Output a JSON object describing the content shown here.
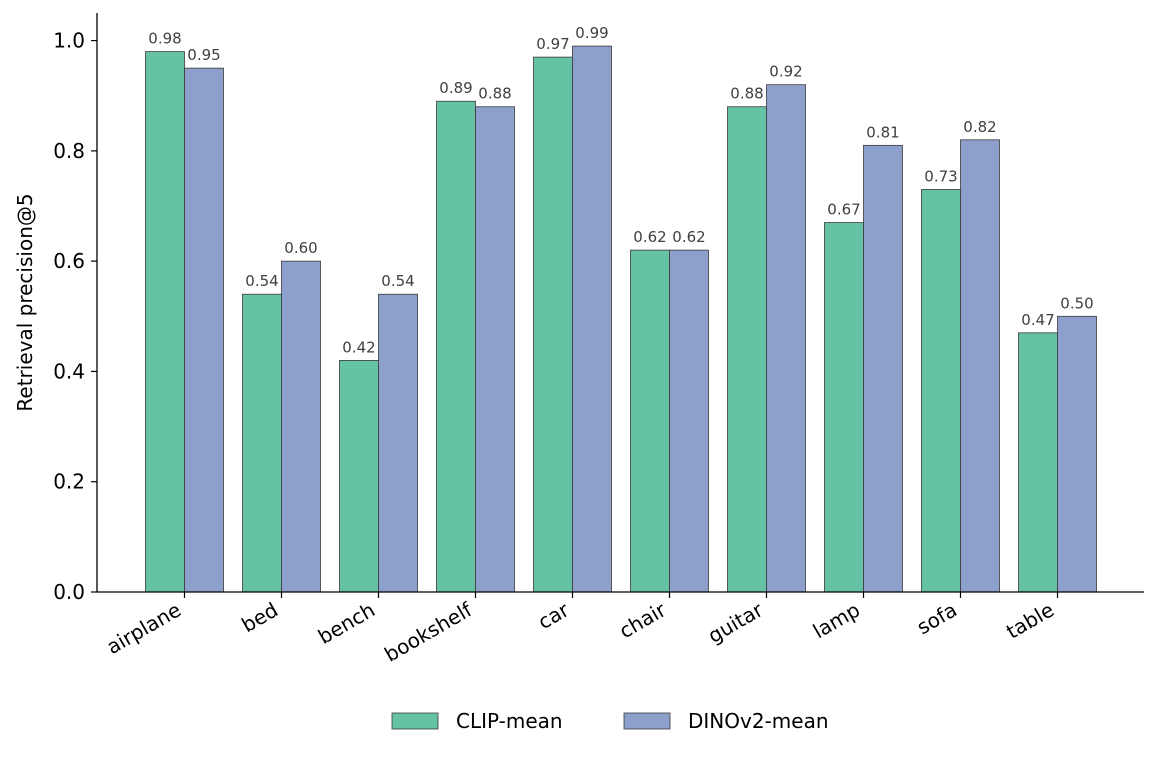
{
  "chart_data": {
    "type": "bar",
    "categories": [
      "airplane",
      "bed",
      "bench",
      "bookshelf",
      "car",
      "chair",
      "guitar",
      "lamp",
      "sofa",
      "table"
    ],
    "series": [
      {
        "name": "CLIP-mean",
        "color": "#66c2a5",
        "values": [
          0.98,
          0.54,
          0.42,
          0.89,
          0.97,
          0.62,
          0.88,
          0.67,
          0.73,
          0.47
        ],
        "labels": [
          "0.98",
          "0.54",
          "0.42",
          "0.89",
          "0.97",
          "0.62",
          "0.88",
          "0.67",
          "0.73",
          "0.47"
        ]
      },
      {
        "name": "DINOv2-mean",
        "color": "#8da0cb",
        "values": [
          0.95,
          0.6,
          0.54,
          0.88,
          0.99,
          0.62,
          0.92,
          0.81,
          0.82,
          0.5
        ],
        "labels": [
          "0.95",
          "0.60",
          "0.54",
          "0.88",
          "0.99",
          "0.62",
          "0.92",
          "0.81",
          "0.82",
          "0.50"
        ]
      }
    ],
    "ylabel": "Retrieval precision@5",
    "xlabel": "",
    "ylim": [
      0,
      1.05
    ],
    "yticks": [
      "0.0",
      "0.2",
      "0.4",
      "0.6",
      "0.8",
      "1.0"
    ],
    "grid": false,
    "legend_position": "bottom-center"
  }
}
